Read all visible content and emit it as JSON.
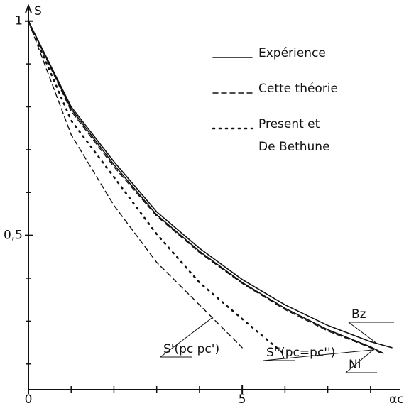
{
  "chart_data": {
    "type": "line",
    "ylabel": "S",
    "xlabel": "αc",
    "xlim": [
      0,
      8.7
    ],
    "ylim": [
      0.14,
      1.036
    ],
    "xticks": [
      0,
      5
    ],
    "xminorticks": [
      1,
      2,
      3,
      4,
      6,
      7,
      8
    ],
    "yticks": [
      {
        "value": 0.5,
        "label": "0,5"
      },
      1
    ],
    "yminorticks": [
      0.2,
      0.3,
      0.4,
      0.6,
      0.7,
      0.8,
      0.9
    ],
    "series": [
      {
        "name": "Expérience",
        "style": "solid",
        "color": "#111",
        "label": "Bz",
        "x": [
          0,
          1,
          2,
          3,
          4,
          5,
          6,
          7,
          8,
          8.5
        ],
        "values": [
          1,
          0.8,
          0.672,
          0.555,
          0.47,
          0.397,
          0.338,
          0.29,
          0.252,
          0.238
        ]
      },
      {
        "style": "solid",
        "color": "#111",
        "label": "Ni",
        "x": [
          0,
          1,
          2,
          3,
          4,
          5,
          6,
          7,
          8,
          8.3
        ],
        "values": [
          1,
          0.795,
          0.665,
          0.548,
          0.463,
          0.39,
          0.33,
          0.28,
          0.24,
          0.225
        ]
      },
      {
        "name": "Cette théorie",
        "style": "dashed",
        "color": "#111",
        "label": "S''(pc=pc'')",
        "x": [
          0,
          1,
          2,
          3,
          4,
          5,
          6,
          7,
          8,
          8.3
        ],
        "values": [
          1,
          0.79,
          0.66,
          0.545,
          0.46,
          0.388,
          0.327,
          0.277,
          0.238,
          0.222
        ]
      },
      {
        "style": "dashed",
        "color": "#111",
        "label": "S'(pc pc')",
        "x": [
          0,
          1,
          2,
          3,
          4,
          5
        ],
        "values": [
          1,
          0.735,
          0.57,
          0.437,
          0.338,
          0.238
        ]
      },
      {
        "name": "Present et\nDe Bethune",
        "style": "dotted",
        "color": "#111",
        "x": [
          0,
          1,
          2,
          3,
          4,
          5,
          6
        ],
        "values": [
          1,
          0.768,
          0.636,
          0.503,
          0.39,
          0.305,
          0.222
        ]
      }
    ]
  }
}
